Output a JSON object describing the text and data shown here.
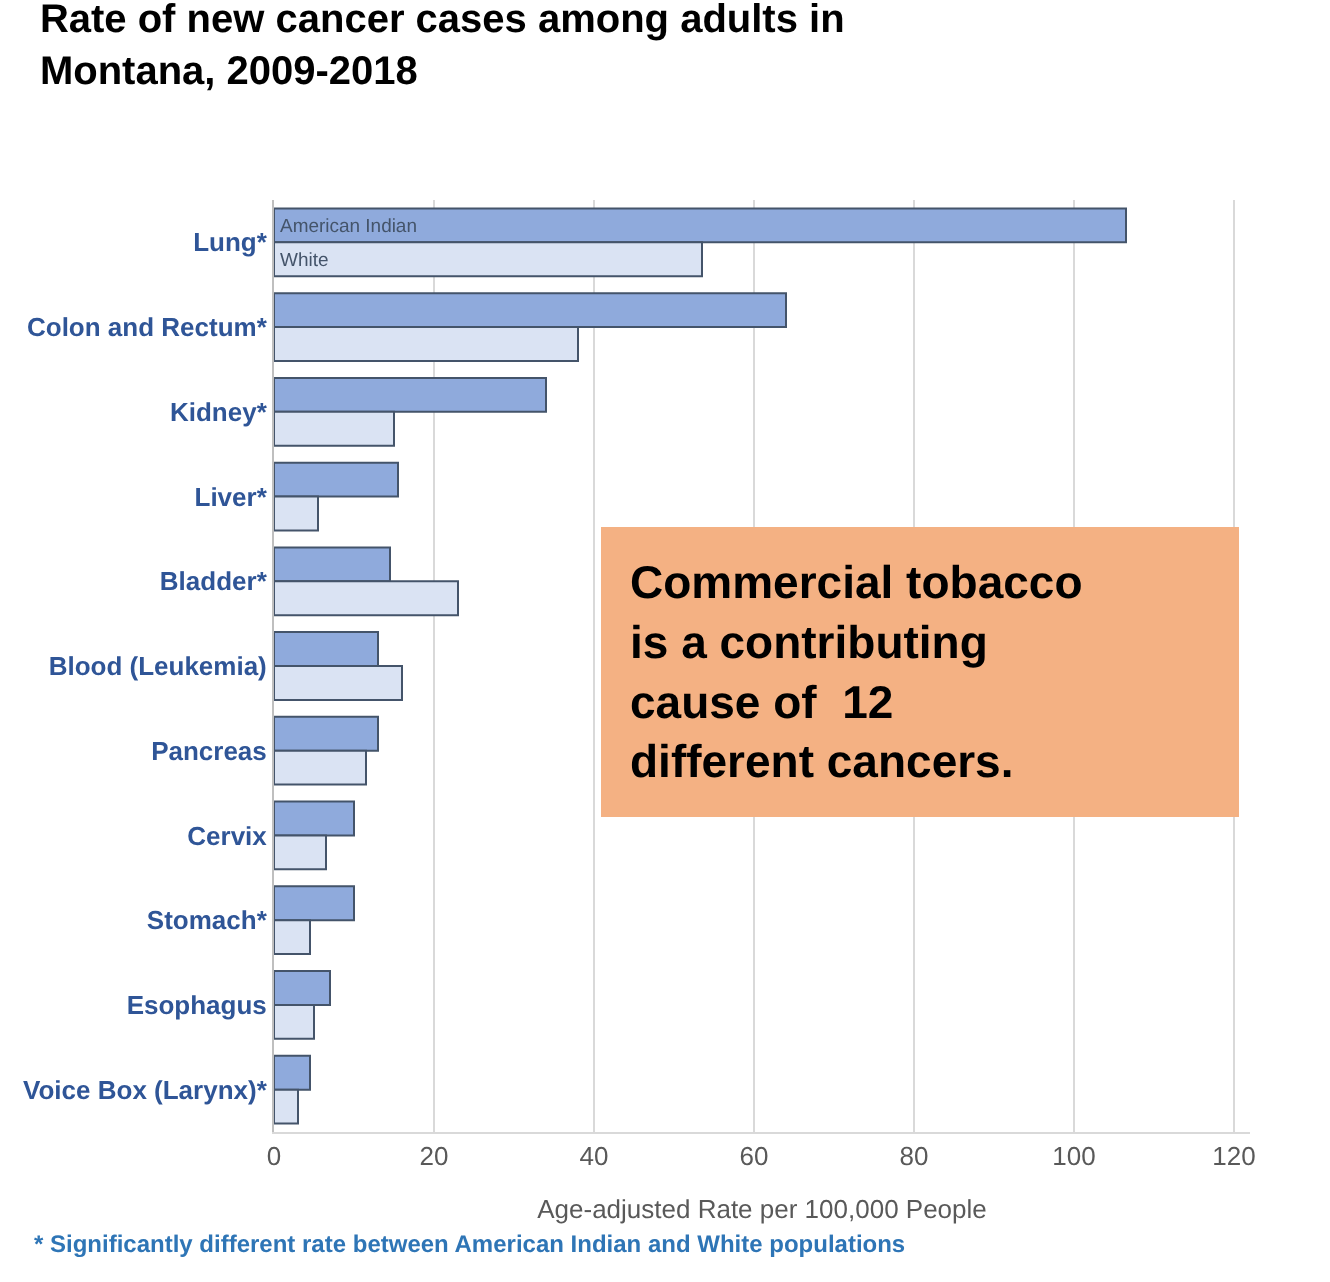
{
  "chart_data": {
    "type": "bar",
    "orientation": "horizontal",
    "title": "Rate of new cancer cases among adults in Montana, 2009-2018",
    "xlabel": "Age-adjusted Rate per 100,000 People",
    "categories": [
      "Lung*",
      "Colon and Rectum*",
      "Kidney*",
      "Liver*",
      "Bladder*",
      "Blood (Leukemia)",
      "Pancreas",
      "Cervix",
      "Stomach*",
      "Esophagus",
      "Voice Box (Larynx)*"
    ],
    "series": [
      {
        "name": "American Indian",
        "color": "#8faadc",
        "values": [
          106.5,
          64,
          34,
          15.5,
          14.5,
          13,
          13,
          10,
          10,
          7,
          4.5
        ]
      },
      {
        "name": "White",
        "color": "#dae3f3",
        "values": [
          53.5,
          38,
          15,
          5.5,
          23,
          16,
          11.5,
          6.5,
          4.5,
          5,
          3
        ]
      }
    ],
    "xlim": [
      0,
      122
    ],
    "xticks": [
      0,
      20,
      40,
      60,
      80,
      100,
      120
    ],
    "grid": "x",
    "annotations": [
      "Commercial tobacco\nis a contributing\ncause of  12\ndifferent cancers.",
      "* Significantly different rate between American Indian and White populations"
    ]
  }
}
